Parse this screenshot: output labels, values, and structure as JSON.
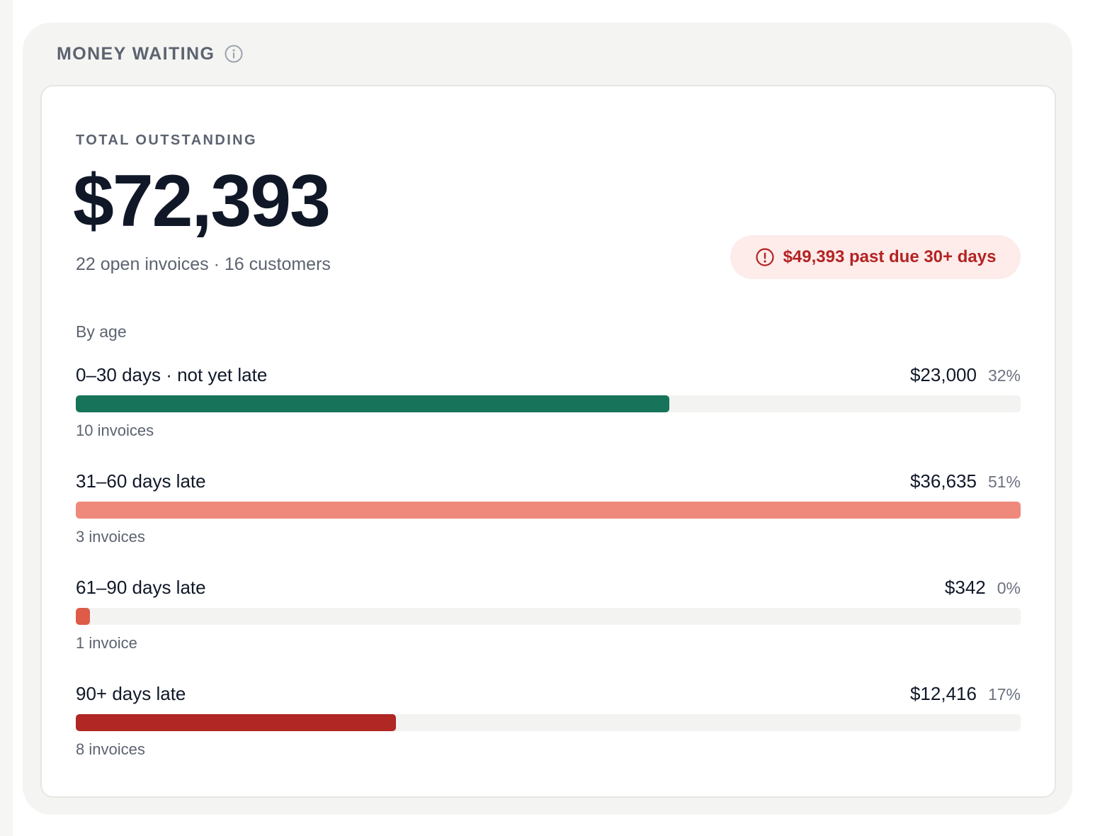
{
  "panel": {
    "title": "MONEY WAITING",
    "info_icon": "info-icon"
  },
  "summary": {
    "label": "TOTAL OUTSTANDING",
    "amount": "$72,393",
    "subtext": "22 open invoices · 16 customers"
  },
  "alert": {
    "icon": "alert-circle-icon",
    "text": "$49,393 past due 30+ days",
    "color": "#b42323",
    "background": "#fdecea"
  },
  "age": {
    "heading": "By age",
    "buckets": [
      {
        "name": "0–30 days · not yet late",
        "amount": "$23,000",
        "percent": "32%",
        "count": "10 invoices",
        "fill_fraction": 0.628,
        "color": "#17745a"
      },
      {
        "name": "31–60 days late",
        "amount": "$36,635",
        "percent": "51%",
        "count": "3 invoices",
        "fill_fraction": 1.0,
        "color": "#ee897b"
      },
      {
        "name": "61–90 days late",
        "amount": "$342",
        "percent": "0%",
        "count": "1 invoice",
        "fill_fraction": 0.015,
        "color": "#df5b49"
      },
      {
        "name": "90+ days late",
        "amount": "$12,416",
        "percent": "17%",
        "count": "8 invoices",
        "fill_fraction": 0.339,
        "color": "#b02723"
      }
    ]
  }
}
